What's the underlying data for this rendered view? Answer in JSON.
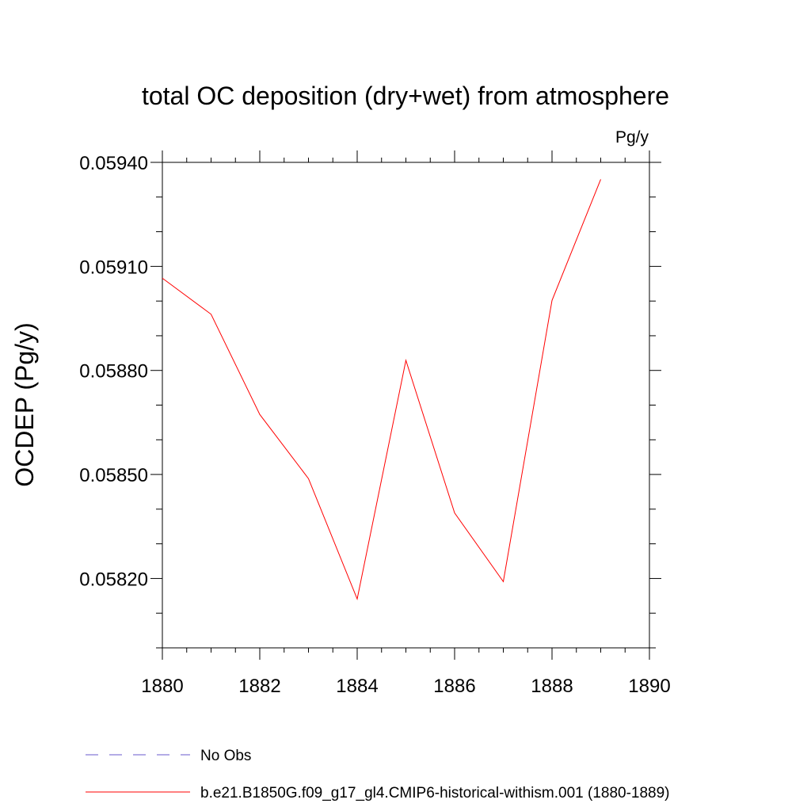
{
  "chart_data": {
    "type": "line",
    "title": "total OC deposition (dry+wet) from atmosphere",
    "units_label": "Pg/y",
    "xlabel": "",
    "ylabel": "OCDEP  (Pg/y)",
    "xlim": [
      1880,
      1890
    ],
    "ylim": [
      0.058,
      0.0594
    ],
    "xticks": [
      1880,
      1882,
      1884,
      1886,
      1888,
      1890
    ],
    "xtick_labels": [
      "1880",
      "1882",
      "1884",
      "1886",
      "1888",
      "1890"
    ],
    "yticks": [
      0.0582,
      0.0585,
      0.0588,
      0.0591,
      0.0594
    ],
    "ytick_labels": [
      "0.05820",
      "0.05850",
      "0.05880",
      "0.05910",
      "0.05940"
    ],
    "y_minor_step": 0.0001,
    "grid": false,
    "legend_position": "bottom",
    "series": [
      {
        "name": "No Obs",
        "color": "#6a5acd",
        "dash": "dashed",
        "x": [],
        "y": []
      },
      {
        "name": "b.e21.B1850G.f09_g17_gl4.CMIP6-historical-withism.001 (1880-1889)",
        "color": "#ff0000",
        "dash": "solid",
        "x": [
          1880,
          1881,
          1882,
          1883,
          1884,
          1885,
          1886,
          1887,
          1888,
          1889
        ],
        "y": [
          0.059066,
          0.058962,
          0.058673,
          0.058488,
          0.058141,
          0.058829,
          0.058389,
          0.058191,
          0.059002,
          0.059351
        ]
      }
    ]
  }
}
